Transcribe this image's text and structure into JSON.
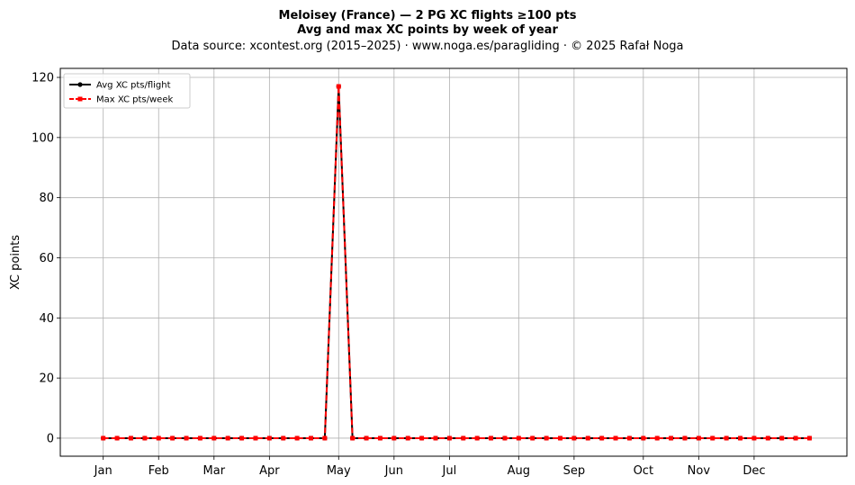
{
  "chart_data": {
    "type": "line",
    "title": "Meloisey (France)  —  2 PG XC flights ≥100 pts",
    "subtitle": "Avg and max XC points by week of year",
    "source_line": "Data source: xcontest.org (2015–2025)  ·  www.noga.es/paragliding  ·  © 2025 Rafał Noga",
    "xlabel": "",
    "ylabel": "XC points",
    "xlim": [
      -2.1,
      54.7
    ],
    "ylim": [
      -6,
      123
    ],
    "yticks": [
      0,
      20,
      40,
      60,
      80,
      100,
      120
    ],
    "xticks": [
      {
        "week": 1,
        "label": "Jan"
      },
      {
        "week": 5,
        "label": "Feb"
      },
      {
        "week": 9,
        "label": "Mar"
      },
      {
        "week": 13,
        "label": "Apr"
      },
      {
        "week": 18,
        "label": "May"
      },
      {
        "week": 22,
        "label": "Jun"
      },
      {
        "week": 26,
        "label": "Jul"
      },
      {
        "week": 31,
        "label": "Aug"
      },
      {
        "week": 35,
        "label": "Sep"
      },
      {
        "week": 40,
        "label": "Oct"
      },
      {
        "week": 44,
        "label": "Nov"
      },
      {
        "week": 48,
        "label": "Dec"
      }
    ],
    "grid": true,
    "legend_position": "top-left",
    "x": [
      1,
      2,
      3,
      4,
      5,
      6,
      7,
      8,
      9,
      10,
      11,
      12,
      13,
      14,
      15,
      16,
      17,
      18,
      19,
      20,
      21,
      22,
      23,
      24,
      25,
      26,
      27,
      28,
      29,
      30,
      31,
      32,
      33,
      34,
      35,
      36,
      37,
      38,
      39,
      40,
      41,
      42,
      43,
      44,
      45,
      46,
      47,
      48,
      49,
      50,
      51,
      52
    ],
    "series": [
      {
        "name": "Avg XC pts/flight",
        "color": "#000000",
        "style": "solid-dot",
        "values": [
          0,
          0,
          0,
          0,
          0,
          0,
          0,
          0,
          0,
          0,
          0,
          0,
          0,
          0,
          0,
          0,
          0,
          117,
          0,
          0,
          0,
          0,
          0,
          0,
          0,
          0,
          0,
          0,
          0,
          0,
          0,
          0,
          0,
          0,
          0,
          0,
          0,
          0,
          0,
          0,
          0,
          0,
          0,
          0,
          0,
          0,
          0,
          0,
          0,
          0,
          0,
          0
        ]
      },
      {
        "name": "Max XC pts/week",
        "color": "#ff0000",
        "style": "dashed-square",
        "values": [
          0,
          0,
          0,
          0,
          0,
          0,
          0,
          0,
          0,
          0,
          0,
          0,
          0,
          0,
          0,
          0,
          0,
          117,
          0,
          0,
          0,
          0,
          0,
          0,
          0,
          0,
          0,
          0,
          0,
          0,
          0,
          0,
          0,
          0,
          0,
          0,
          0,
          0,
          0,
          0,
          0,
          0,
          0,
          0,
          0,
          0,
          0,
          0,
          0,
          0,
          0,
          0
        ]
      }
    ]
  }
}
